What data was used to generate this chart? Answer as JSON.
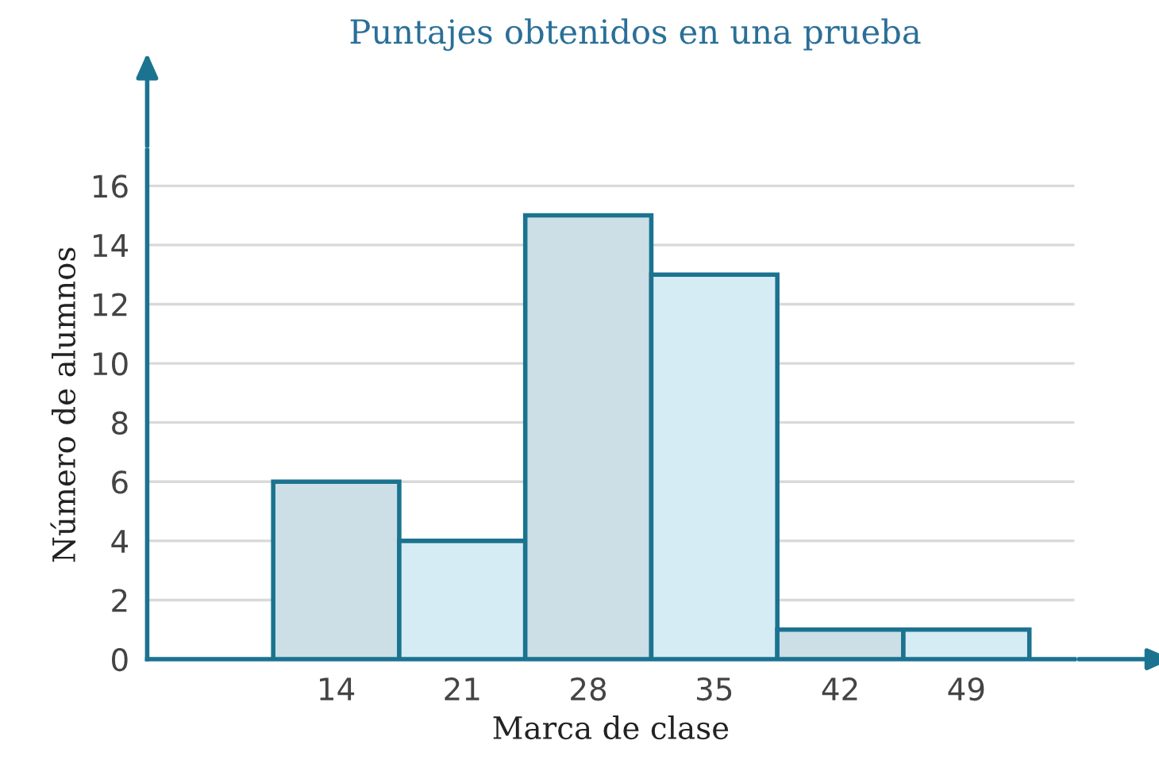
{
  "chart_data": {
    "type": "histogram",
    "title": "Puntajes obtenidos en una prueba",
    "xlabel": "Marca de clase",
    "ylabel": "Número de alumnos",
    "bins": [
      10.5,
      17.5,
      24.5,
      31.5,
      38.5,
      45.5,
      52.5
    ],
    "values": [
      6,
      4,
      15,
      13,
      1,
      1
    ],
    "colors": [
      "#ccdfe6",
      "#d5ecf5",
      "#ccdfe6",
      "#d5ecf5",
      "#ccdfe6",
      "#d5ecf5"
    ],
    "xlim": [
      3.5,
      55
    ],
    "ylim": [
      0,
      17.2
    ],
    "xticks": [
      14,
      21,
      28,
      35,
      42,
      49
    ],
    "yticks": [
      0,
      2,
      4,
      6,
      8,
      10,
      12,
      14,
      16
    ],
    "grid": "y"
  }
}
